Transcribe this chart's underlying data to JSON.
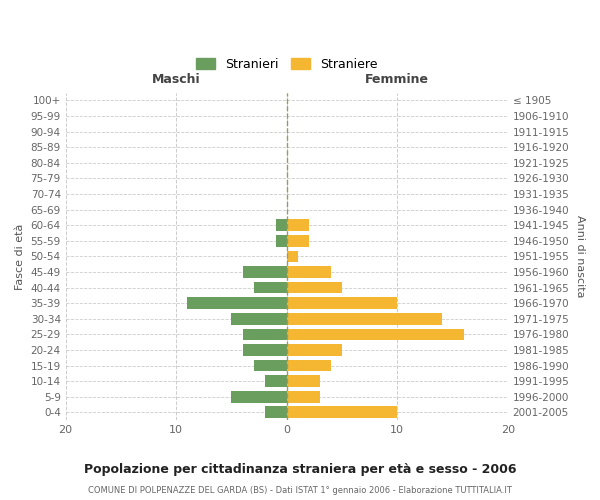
{
  "age_groups": [
    "100+",
    "95-99",
    "90-94",
    "85-89",
    "80-84",
    "75-79",
    "70-74",
    "65-69",
    "60-64",
    "55-59",
    "50-54",
    "45-49",
    "40-44",
    "35-39",
    "30-34",
    "25-29",
    "20-24",
    "15-19",
    "10-14",
    "5-9",
    "0-4"
  ],
  "birth_years": [
    "≤ 1905",
    "1906-1910",
    "1911-1915",
    "1916-1920",
    "1921-1925",
    "1926-1930",
    "1931-1935",
    "1936-1940",
    "1941-1945",
    "1946-1950",
    "1951-1955",
    "1956-1960",
    "1961-1965",
    "1966-1970",
    "1971-1975",
    "1976-1980",
    "1981-1985",
    "1986-1990",
    "1991-1995",
    "1996-2000",
    "2001-2005"
  ],
  "maschi": [
    0,
    0,
    0,
    0,
    0,
    0,
    0,
    0,
    1,
    1,
    0,
    4,
    3,
    9,
    5,
    4,
    4,
    3,
    2,
    5,
    2
  ],
  "femmine": [
    0,
    0,
    0,
    0,
    0,
    0,
    0,
    0,
    2,
    2,
    1,
    4,
    5,
    10,
    14,
    16,
    5,
    4,
    3,
    3,
    10
  ],
  "male_color": "#6a9e5e",
  "female_color": "#f5b731",
  "title": "Popolazione per cittadinanza straniera per età e sesso - 2006",
  "subtitle": "COMUNE DI POLPENAZZE DEL GARDA (BS) - Dati ISTAT 1° gennaio 2006 - Elaborazione TUTTITALIA.IT",
  "xlabel_left": "Maschi",
  "xlabel_right": "Femmine",
  "ylabel_left": "Fasce di età",
  "ylabel_right": "Anni di nascita",
  "xlim": 20,
  "legend_stranieri": "Stranieri",
  "legend_straniere": "Straniere",
  "bg_color": "#ffffff",
  "grid_color": "#cccccc",
  "bar_height": 0.75
}
